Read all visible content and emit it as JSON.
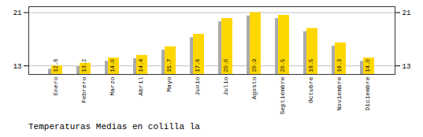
{
  "chart_data": {
    "type": "bar",
    "title": "Temperaturas Medias en colilla la",
    "categories": [
      "Enero",
      "Febrero",
      "Marzo",
      "Abril",
      "Mayo",
      "Junio",
      "Julio",
      "Agosto",
      "Septiembre",
      "Octubre",
      "Noviembre",
      "Diciembre"
    ],
    "series": [
      {
        "color": "#AAAAAA",
        "values": [
          12.3,
          12.7,
          13.5,
          13.9,
          15.2,
          17.1,
          19.5,
          20.4,
          20.0,
          18.0,
          15.8,
          13.5
        ]
      },
      {
        "color": "#FFD700",
        "values": [
          12.8,
          13.2,
          14.0,
          14.4,
          15.7,
          17.6,
          20.0,
          20.9,
          20.5,
          18.5,
          16.3,
          14.0
        ],
        "data_labels": true,
        "value_labels": [
          "12.8",
          "13.2",
          "14.0",
          "14.4",
          "15.7",
          "17.6",
          "20.0",
          "20.9",
          "20.5",
          "18.5",
          "16.3",
          "14.0"
        ]
      }
    ],
    "ylim": [
      11.5,
      21.8
    ],
    "yticks": [
      12.8,
      20.9
    ],
    "grid": true
  }
}
